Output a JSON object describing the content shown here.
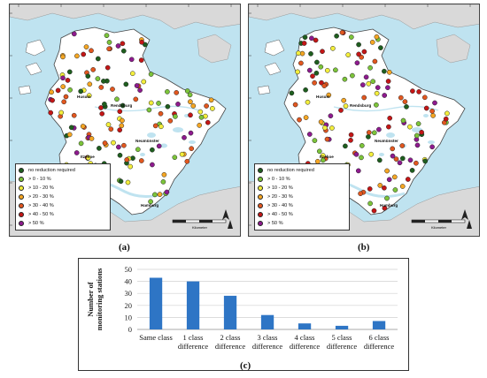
{
  "maps": [
    {
      "panel_label": "(a)",
      "cities": [
        "Husum",
        "Rendsburg",
        "Neumünster",
        "Itzehoe",
        "Hamburg"
      ]
    },
    {
      "panel_label": "(b)",
      "cities": [
        "Husum",
        "Rendsburg",
        "Neumünster",
        "Itzehoe",
        "Hamburg"
      ]
    }
  ],
  "legend": [
    {
      "label": "no reduction required",
      "color": "#1e5e1e"
    },
    {
      "label": "> 0 - 10 %",
      "color": "#7cc43a"
    },
    {
      "label": "> 10 - 20 %",
      "color": "#f3ee3c"
    },
    {
      "label": "> 20 - 30 %",
      "color": "#f5a623"
    },
    {
      "label": "> 30 - 40 %",
      "color": "#e2571f"
    },
    {
      "label": "> 40 - 50 %",
      "color": "#c41616"
    },
    {
      "label": "> 50 %",
      "color": "#8e1a8e"
    }
  ],
  "scale_label": "Kilometer",
  "colors": {
    "water": "#bfe3f0",
    "land": "#ffffff",
    "neighbor_land": "#d9d9d9",
    "bar": "#2e75c5"
  },
  "chart_label": "(c)",
  "chart_data": {
    "type": "bar",
    "categories": [
      "Same class",
      "1 class difference",
      "2 class difference",
      "3 class difference",
      "4 class difference",
      "5 class difference",
      "6 class difference"
    ],
    "category_lines": [
      [
        "Same class"
      ],
      [
        "1 class",
        "difference"
      ],
      [
        "2 class",
        "difference"
      ],
      [
        "3 class",
        "difference"
      ],
      [
        "4 class",
        "difference"
      ],
      [
        "5 class",
        "difference"
      ],
      [
        "6 class",
        "difference"
      ]
    ],
    "values": [
      43,
      40,
      28,
      12,
      5,
      3,
      7
    ],
    "ylabel": [
      "Number of",
      "monitoring stations"
    ],
    "ylim": [
      0,
      50
    ],
    "yticks": [
      0,
      10,
      20,
      30,
      40,
      50
    ],
    "grid": true
  }
}
